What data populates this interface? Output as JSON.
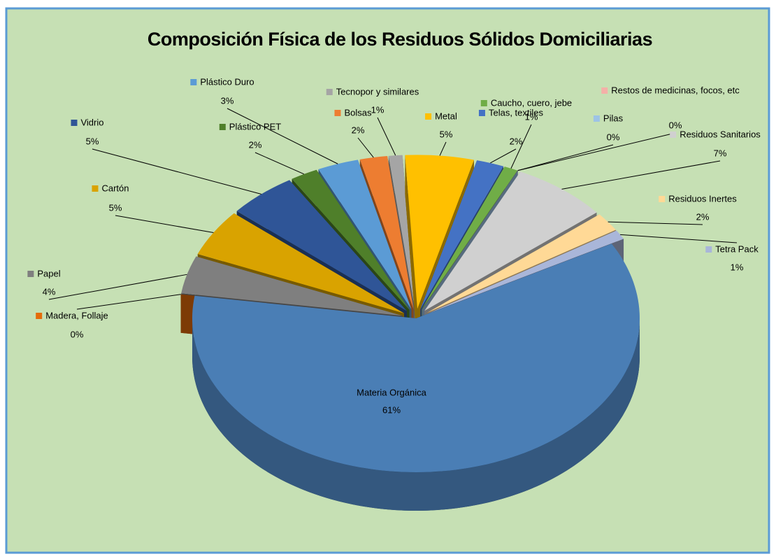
{
  "chart_data": {
    "type": "pie",
    "title": "Composición Física de los Residuos Sólidos Domiciliarias",
    "categories": [
      "Materia Orgánica",
      "Madera, Follaje",
      "Papel",
      "Cartón",
      "Vidrio",
      "Plástico PET",
      "Plástico Duro",
      "Bolsas",
      "Tecnopor y similares",
      "Metal",
      "Telas, textiles",
      "Caucho, cuero, jebe",
      "Restos de medicinas, focos, etc",
      "Pilas",
      "Residuos Sanitarios",
      "Residuos Inertes",
      "Tetra Pack"
    ],
    "values": [
      61,
      0,
      4,
      5,
      5,
      2,
      3,
      2,
      1,
      5,
      2,
      1,
      0,
      0,
      7,
      2,
      1
    ],
    "value_labels": [
      "61%",
      "0%",
      "4%",
      "5%",
      "5%",
      "2%",
      "3%",
      "2%",
      "1%",
      "5%",
      "2%",
      "1%",
      "0%",
      "0%",
      "7%",
      "2%",
      "1%"
    ],
    "colors": [
      "#4a7eb5",
      "#e46c0a",
      "#7f7f7f",
      "#d9a300",
      "#2f5597",
      "#4f7f2a",
      "#5b9bd5",
      "#ed7d31",
      "#a5a5a5",
      "#ffc000",
      "#4472c4",
      "#70ad47",
      "#f4b0a8",
      "#9dc3e6",
      "#d0d0d0",
      "#ffd996",
      "#a9b6d9"
    ]
  }
}
